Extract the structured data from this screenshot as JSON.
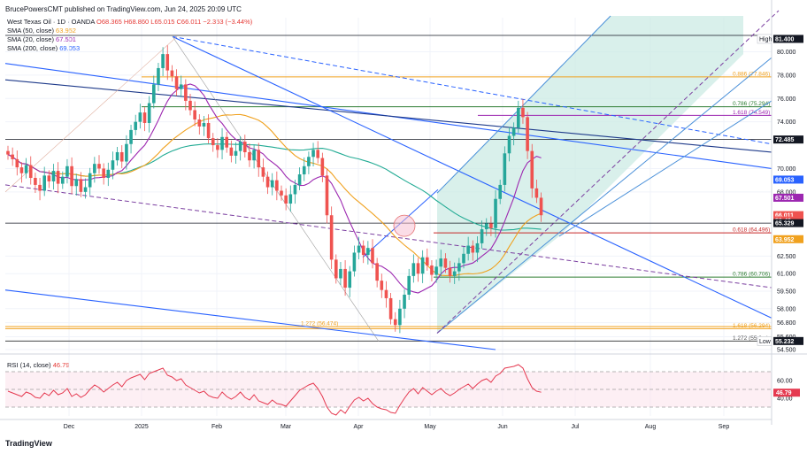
{
  "header": {
    "author_line": "BrucePowersCMT published on TradingView.com, Jun 24, 2025 20:09 UTC"
  },
  "legend": {
    "symbol_line": "West Texas Oil · 1D · OANDA",
    "ohlc": "O68.365 H68.860 L65.015 C66.011 −2.353 (−3.44%)",
    "sma50_label": "SMA (50, close)",
    "sma50_value": "63.952",
    "sma20_label": "SMA (20, close)",
    "sma20_value": "67.501",
    "sma200_label": "SMA (200, close)",
    "sma200_value": "69.053"
  },
  "rsi_legend": {
    "label": "RSI (14, close)",
    "value": "46.79"
  },
  "brand": "TradingView",
  "colors": {
    "up": "#26a69a",
    "down": "#ef5350",
    "sma50": "#f0a11e",
    "sma20": "#9c27b0",
    "sma200": "#2962ff",
    "sma_teal": "#22ab94",
    "channel": "#4a90d9",
    "fill": "#ccebe4"
  },
  "chart_data": {
    "type": "candlestick",
    "symbol": "West Texas Oil",
    "timeframe": "1D",
    "x_tick_labels": [
      "Dec",
      "2025",
      "Feb",
      "Mar",
      "Apr",
      "May",
      "Jun",
      "Jul",
      "Aug",
      "Sep"
    ],
    "y_tick_labels": [
      "80.000",
      "78.000",
      "76.000",
      "74.000",
      "70.000",
      "68.000",
      "62.500",
      "61.000",
      "59.500",
      "58.000",
      "56.800",
      "55.600",
      "54.500"
    ],
    "ylim": [
      54.5,
      81.4
    ],
    "last_close": 66.011,
    "price_tags": [
      {
        "label": "High",
        "value": "81.400",
        "color": "#131722"
      },
      {
        "label": "",
        "value": "72.485",
        "color": "#131722"
      },
      {
        "label": "",
        "value": "69.053",
        "color": "#2962ff"
      },
      {
        "label": "",
        "value": "67.501",
        "color": "#9c27b0"
      },
      {
        "label": "",
        "value": "66.011",
        "color": "#ef5350"
      },
      {
        "label": "",
        "value": "50:46",
        "color": "#ef5350"
      },
      {
        "label": "",
        "value": "65.329",
        "color": "#131722"
      },
      {
        "label": "",
        "value": "63.952",
        "color": "#f0a11e"
      },
      {
        "label": "Low",
        "value": "55.232",
        "color": "#131722"
      }
    ],
    "fib_levels": [
      {
        "label": "0.886 (77.846)",
        "value": 77.846,
        "color": "#f0a11e"
      },
      {
        "label": "0.786 (75.294)",
        "value": 75.294,
        "color": "#2e7d32"
      },
      {
        "label": "1.618 (74.549)",
        "value": 74.549,
        "color": "#9c27b0"
      },
      {
        "label": "0.618 (64.496)",
        "value": 64.496,
        "color": "#c62828"
      },
      {
        "label": "0.786 (60.706)",
        "value": 60.706,
        "color": "#2e7d32"
      },
      {
        "label": "1.272 (56.474)",
        "value": 56.474,
        "color": "#f0a11e"
      },
      {
        "label": "1.618 (56.294)",
        "value": 56.294,
        "color": "#f0a11e"
      },
      {
        "label": "1.272 (55.2...)",
        "value": 55.232,
        "color": "#555555"
      }
    ],
    "horizontal_levels": [
      81.4,
      72.485,
      65.329,
      55.232
    ],
    "series": [
      {
        "name": "SMA (50, close)",
        "value": 63.952
      },
      {
        "name": "SMA (20, close)",
        "value": 67.501
      },
      {
        "name": "SMA (200, close)",
        "value": 69.053
      }
    ],
    "closes": [
      71.2,
      70.8,
      70.1,
      69.6,
      70.3,
      69.2,
      68.6,
      68.1,
      69.4,
      68.9,
      69.8,
      68.7,
      69.3,
      70.2,
      68.5,
      69.1,
      68.0,
      68.4,
      69.6,
      70.4,
      70.0,
      69.2,
      69.9,
      70.7,
      71.4,
      70.6,
      72.1,
      73.3,
      74.0,
      74.8,
      73.9,
      75.6,
      77.2,
      78.6,
      79.8,
      78.4,
      77.9,
      76.8,
      77.2,
      75.8,
      75.0,
      74.2,
      73.6,
      73.9,
      72.6,
      72.0,
      71.6,
      72.7,
      71.8,
      71.1,
      71.5,
      72.3,
      71.4,
      70.7,
      71.6,
      70.1,
      69.3,
      68.4,
      69.0,
      68.1,
      67.7,
      67.0,
      67.8,
      68.6,
      69.5,
      70.2,
      71.0,
      71.6,
      70.9,
      69.4,
      66.0,
      62.2,
      60.6,
      61.4,
      59.8,
      61.2,
      62.8,
      63.4,
      62.6,
      63.2,
      61.9,
      60.4,
      59.6,
      58.9,
      57.1,
      56.6,
      58.0,
      59.2,
      60.8,
      61.9,
      61.0,
      62.4,
      61.7,
      60.9,
      61.6,
      62.3,
      61.5,
      60.8,
      61.2,
      61.9,
      62.7,
      63.4,
      62.8,
      63.6,
      64.8,
      65.3,
      64.9,
      67.4,
      68.6,
      71.3,
      72.8,
      73.5,
      75.2,
      74.4,
      71.5,
      68.3,
      67.5,
      66.0
    ],
    "rsi": {
      "label": "RSI (14, close)",
      "last": 46.79,
      "levels": [
        70,
        50,
        30
      ],
      "tick_labels": [
        "60.00",
        "40.00"
      ],
      "values": [
        48,
        46,
        44,
        42,
        47,
        45,
        41,
        40,
        46,
        43,
        49,
        44,
        46,
        51,
        42,
        45,
        41,
        44,
        50,
        55,
        52,
        47,
        51,
        55,
        58,
        53,
        60,
        63,
        65,
        67,
        61,
        68,
        70,
        72,
        74,
        66,
        64,
        60,
        62,
        55,
        52,
        49,
        46,
        48,
        43,
        41,
        40,
        47,
        42,
        39,
        42,
        47,
        41,
        38,
        44,
        37,
        35,
        33,
        38,
        34,
        33,
        31,
        37,
        43,
        49,
        52,
        55,
        57,
        51,
        42,
        30,
        23,
        21,
        27,
        23,
        31,
        38,
        41,
        37,
        40,
        34,
        30,
        28,
        27,
        24,
        23,
        32,
        40,
        47,
        51,
        45,
        52,
        48,
        44,
        48,
        51,
        46,
        43,
        46,
        50,
        53,
        56,
        51,
        56,
        60,
        62,
        58,
        65,
        68,
        74,
        75,
        76,
        78,
        74,
        62,
        52,
        48,
        46.79
      ]
    }
  }
}
